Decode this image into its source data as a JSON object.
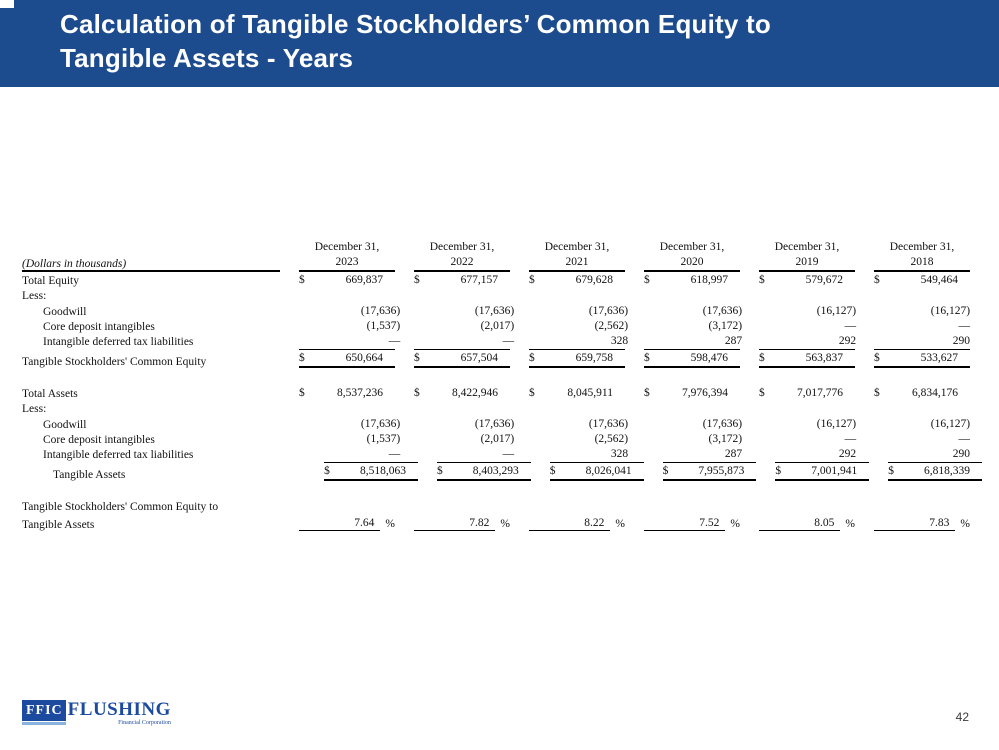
{
  "slide": {
    "title_line1": "Calculation of Tangible Stockholders’ Common Equity to",
    "title_line2": "Tangible Assets - Years",
    "page_number": "42"
  },
  "logo": {
    "box_text": "FFIC",
    "name_text": "FLUSHING",
    "tagline": "Financial Corporation"
  },
  "colors": {
    "header_blue": "#1c4b8e",
    "logo_blue": "#1b4a9e",
    "logo_light_blue": "#8ab4dd"
  },
  "table": {
    "unit_label": "(Dollars in thousands)",
    "date_header": "December 31,",
    "years": [
      "2023",
      "2022",
      "2021",
      "2020",
      "2019",
      "2018"
    ],
    "dollar_sign": "$",
    "percent_sign": "%",
    "rows": [
      {
        "label": "Total Equity",
        "values": [
          "669,837",
          "677,157",
          "679,628",
          "618,997",
          "579,672",
          "549,464"
        ]
      },
      {
        "label": "Less:"
      },
      {
        "label": "Goodwill",
        "values": [
          "(17,636)",
          "(17,636)",
          "(17,636)",
          "(17,636)",
          "(16,127)",
          "(16,127)"
        ]
      },
      {
        "label": "Core deposit intangibles",
        "values": [
          "(1,537)",
          "(2,017)",
          "(2,562)",
          "(3,172)",
          "—",
          "—"
        ]
      },
      {
        "label": "Intangible deferred tax liabilities",
        "values": [
          "—",
          "—",
          "328",
          "287",
          "292",
          "290"
        ]
      },
      {
        "label": "Tangible Stockholders' Common Equity",
        "values": [
          "650,664",
          "657,504",
          "659,758",
          "598,476",
          "563,837",
          "533,627"
        ]
      },
      {
        "label": "Total Assets",
        "values": [
          "8,537,236",
          "8,422,946",
          "8,045,911",
          "7,976,394",
          "7,017,776",
          "6,834,176"
        ]
      },
      {
        "label": "Less:"
      },
      {
        "label": "Goodwill",
        "values": [
          "(17,636)",
          "(17,636)",
          "(17,636)",
          "(17,636)",
          "(16,127)",
          "(16,127)"
        ]
      },
      {
        "label": "Core deposit intangibles",
        "values": [
          "(1,537)",
          "(2,017)",
          "(2,562)",
          "(3,172)",
          "—",
          "—"
        ]
      },
      {
        "label": "Intangible deferred tax liabilities",
        "values": [
          "—",
          "—",
          "328",
          "287",
          "292",
          "290"
        ]
      },
      {
        "label": "Tangible Assets",
        "values": [
          "8,518,063",
          "8,403,293",
          "8,026,041",
          "7,955,873",
          "7,001,941",
          "6,818,339"
        ]
      },
      {
        "label_line1": "Tangible Stockholders' Common Equity to",
        "label_line2": "Tangible Assets",
        "values": [
          "7.64",
          "7.82",
          "8.22",
          "7.52",
          "8.05",
          "7.83"
        ]
      }
    ]
  }
}
